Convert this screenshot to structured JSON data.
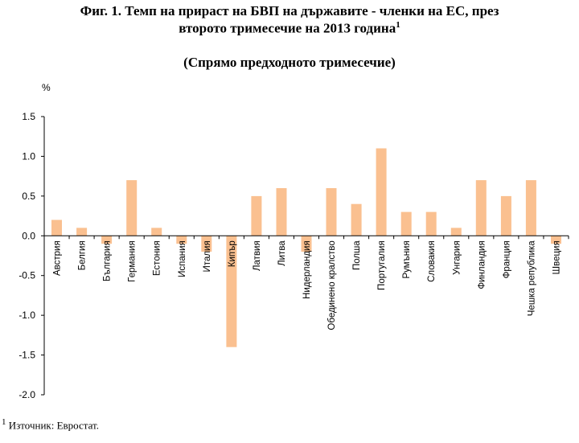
{
  "title_line1": "Фиг. 1. Темп на прираст на БВП на държавите - членки на ЕС, през",
  "title_line2": "второто тримесечие на 2013 година",
  "title_sup": "1",
  "subtitle": "(Спрямо предходното тримесечие)",
  "unit": "%",
  "footnote_sup": "1",
  "footnote": " Източник: Евростат.",
  "colors": {
    "bar": "#FAC090",
    "axis": "#000000"
  },
  "chart_data": {
    "type": "bar",
    "title": "Фиг. 1. Темп на прираст на БВП на държавите - членки на ЕС, през второто тримесечие на 2013 година",
    "subtitle": "(Спрямо предходното тримесечие)",
    "ylabel": "%",
    "xlabel": "",
    "ylim": [
      -2.0,
      1.5
    ],
    "yticks": [
      "1.5",
      "1.0",
      "0.5",
      "0.0",
      "-0.5",
      "-1.0",
      "-1.5",
      "-2.0"
    ],
    "grid": false,
    "categories": [
      "Австрия",
      "Белгия",
      "България",
      "Германия",
      "Естония",
      "Испания",
      "Италия",
      "Кипър",
      "Латвия",
      "Литва",
      "Нидерландия",
      "Обединено кралство",
      "Полша",
      "Португалия",
      "Румъния",
      "Словакия",
      "Унгария",
      "Финландия",
      "Франция",
      "Чешка република",
      "Швеция"
    ],
    "values": [
      0.2,
      0.1,
      -0.1,
      0.7,
      0.1,
      -0.1,
      -0.2,
      -1.4,
      0.5,
      0.6,
      -0.2,
      0.6,
      0.4,
      1.1,
      0.3,
      0.3,
      0.1,
      0.7,
      0.5,
      0.7,
      -0.1
    ]
  }
}
